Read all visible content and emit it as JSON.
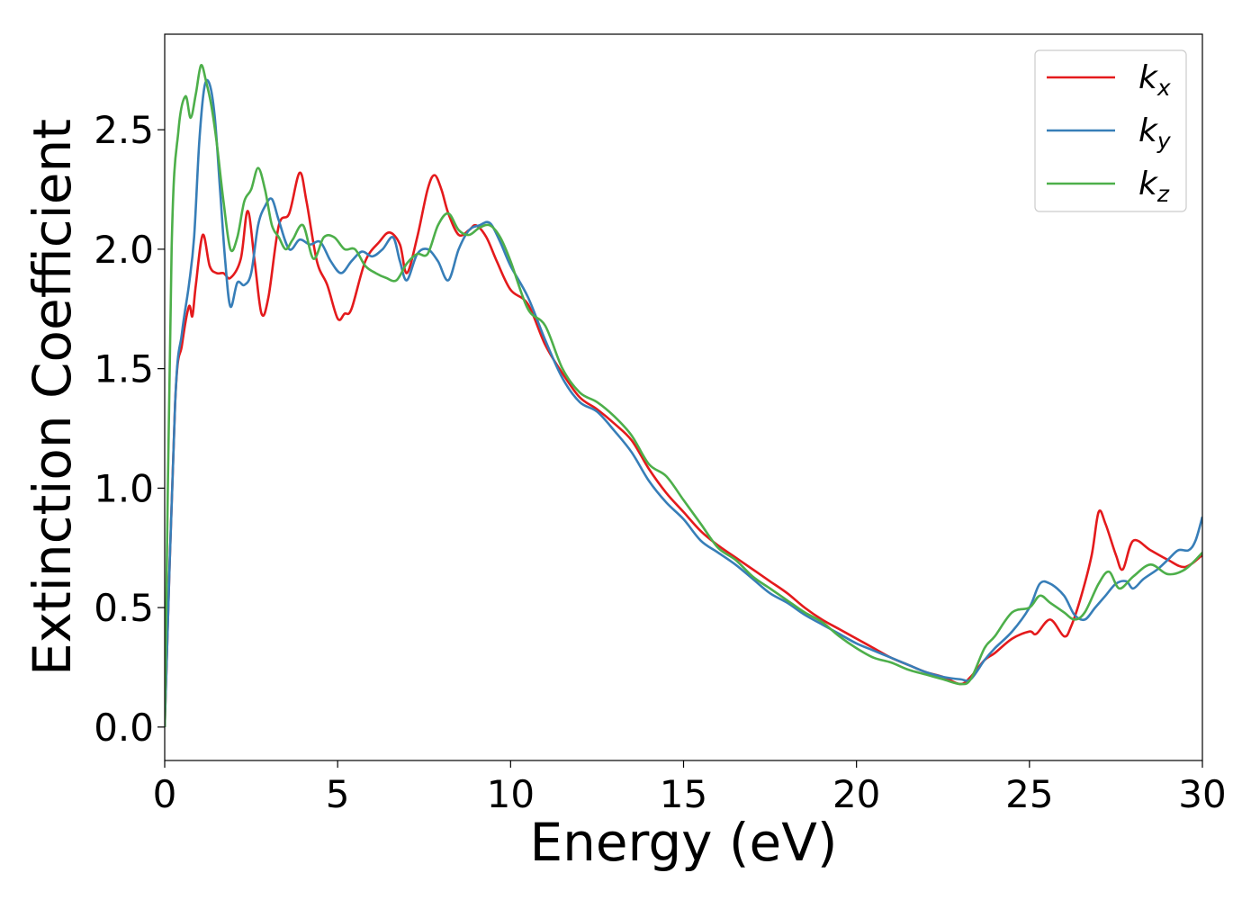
{
  "chart_data": {
    "type": "line",
    "xlabel": "Energy (eV)",
    "ylabel": "Extinction Coefficient",
    "xlim": [
      0,
      30
    ],
    "ylim": [
      -0.14,
      2.9
    ],
    "xticks": [
      0,
      5,
      10,
      15,
      20,
      25,
      30
    ],
    "xtick_labels": [
      "0",
      "5",
      "10",
      "15",
      "20",
      "25",
      "30"
    ],
    "yticks": [
      0.0,
      0.5,
      1.0,
      1.5,
      2.0,
      2.5
    ],
    "ytick_labels": [
      "0.0",
      "0.5",
      "1.0",
      "1.5",
      "2.0",
      "2.5"
    ],
    "grid": false,
    "legend_position": "top-right",
    "series": [
      {
        "name": "k_x",
        "legend_main": "k",
        "legend_sub": "x",
        "color": "#e41a1c",
        "x": [
          0,
          0.3,
          0.5,
          0.7,
          0.8,
          0.9,
          1.1,
          1.3,
          1.5,
          1.7,
          1.9,
          2.2,
          2.4,
          2.6,
          2.8,
          3.0,
          3.3,
          3.6,
          3.9,
          4.1,
          4.4,
          4.7,
          5.0,
          5.2,
          5.4,
          5.8,
          6.2,
          6.5,
          6.8,
          7.0,
          7.3,
          7.6,
          7.8,
          8.0,
          8.2,
          8.5,
          8.8,
          9.0,
          9.3,
          9.6,
          10.0,
          10.5,
          11.0,
          11.5,
          12.0,
          12.5,
          13.0,
          13.5,
          14.0,
          14.5,
          15.0,
          15.5,
          16.0,
          16.5,
          17.0,
          17.5,
          18.0,
          18.5,
          19.0,
          19.5,
          20.0,
          20.5,
          21.0,
          21.5,
          22.0,
          22.5,
          23.0,
          23.3,
          23.7,
          24.0,
          24.5,
          25.0,
          25.2,
          25.6,
          26.0,
          26.2,
          26.5,
          26.8,
          27.0,
          27.2,
          27.5,
          27.7,
          28.0,
          28.5,
          29.0,
          29.5,
          30.0
        ],
        "y": [
          0.0,
          1.35,
          1.6,
          1.76,
          1.72,
          1.85,
          2.06,
          1.93,
          1.9,
          1.9,
          1.88,
          1.96,
          2.16,
          1.95,
          1.73,
          1.8,
          2.1,
          2.15,
          2.32,
          2.2,
          1.95,
          1.85,
          1.71,
          1.73,
          1.75,
          1.95,
          2.03,
          2.07,
          2.02,
          1.9,
          2.05,
          2.25,
          2.31,
          2.25,
          2.15,
          2.06,
          2.08,
          2.1,
          2.05,
          1.95,
          1.83,
          1.77,
          1.6,
          1.48,
          1.38,
          1.33,
          1.27,
          1.2,
          1.08,
          0.98,
          0.9,
          0.82,
          0.76,
          0.71,
          0.66,
          0.61,
          0.56,
          0.5,
          0.45,
          0.41,
          0.37,
          0.33,
          0.29,
          0.26,
          0.23,
          0.21,
          0.18,
          0.21,
          0.28,
          0.31,
          0.37,
          0.4,
          0.39,
          0.45,
          0.38,
          0.42,
          0.55,
          0.72,
          0.9,
          0.85,
          0.72,
          0.66,
          0.78,
          0.74,
          0.7,
          0.67,
          0.72
        ]
      },
      {
        "name": "k_y",
        "legend_main": "k",
        "legend_sub": "y",
        "color": "#377eb8",
        "x": [
          0,
          0.3,
          0.5,
          0.7,
          0.85,
          1.0,
          1.15,
          1.3,
          1.45,
          1.6,
          1.75,
          1.9,
          2.1,
          2.3,
          2.5,
          2.7,
          2.9,
          3.1,
          3.3,
          3.6,
          3.9,
          4.2,
          4.5,
          4.8,
          5.1,
          5.4,
          5.7,
          6.0,
          6.3,
          6.6,
          6.8,
          7.0,
          7.3,
          7.6,
          7.9,
          8.2,
          8.5,
          8.8,
          9.1,
          9.4,
          9.7,
          10.0,
          10.5,
          11.0,
          11.5,
          12.0,
          12.5,
          13.0,
          13.5,
          14.0,
          14.5,
          15.0,
          15.5,
          16.0,
          16.5,
          17.0,
          17.5,
          18.0,
          18.5,
          19.0,
          19.5,
          20.0,
          20.5,
          21.0,
          21.5,
          22.0,
          22.5,
          23.0,
          23.3,
          23.7,
          24.0,
          24.5,
          25.0,
          25.3,
          25.6,
          26.0,
          26.3,
          26.6,
          26.9,
          27.2,
          27.5,
          27.8,
          28.0,
          28.3,
          28.7,
          29.0,
          29.3,
          29.6,
          29.8,
          30.0
        ],
        "y": [
          0.0,
          1.35,
          1.65,
          1.85,
          2.05,
          2.45,
          2.68,
          2.69,
          2.55,
          2.25,
          1.95,
          1.76,
          1.86,
          1.85,
          1.9,
          2.1,
          2.18,
          2.21,
          2.12,
          2.0,
          2.04,
          2.02,
          2.03,
          1.95,
          1.9,
          1.95,
          1.99,
          1.97,
          2.0,
          2.05,
          1.95,
          1.87,
          1.98,
          2.0,
          1.95,
          1.87,
          2.0,
          2.08,
          2.1,
          2.11,
          2.03,
          1.93,
          1.8,
          1.62,
          1.46,
          1.36,
          1.32,
          1.24,
          1.15,
          1.03,
          0.94,
          0.87,
          0.78,
          0.73,
          0.68,
          0.62,
          0.56,
          0.52,
          0.47,
          0.43,
          0.39,
          0.35,
          0.32,
          0.29,
          0.26,
          0.23,
          0.21,
          0.2,
          0.2,
          0.28,
          0.33,
          0.4,
          0.5,
          0.6,
          0.6,
          0.55,
          0.47,
          0.45,
          0.5,
          0.55,
          0.6,
          0.61,
          0.58,
          0.62,
          0.66,
          0.7,
          0.74,
          0.74,
          0.78,
          0.88
        ]
      },
      {
        "name": "k_z",
        "legend_main": "k",
        "legend_sub": "z",
        "color": "#4daf4a",
        "x": [
          0,
          0.2,
          0.4,
          0.6,
          0.75,
          0.9,
          1.05,
          1.2,
          1.35,
          1.5,
          1.7,
          1.9,
          2.1,
          2.3,
          2.5,
          2.7,
          2.9,
          3.1,
          3.3,
          3.5,
          3.7,
          4.0,
          4.3,
          4.6,
          4.9,
          5.2,
          5.5,
          5.8,
          6.1,
          6.4,
          6.7,
          7.0,
          7.3,
          7.6,
          7.9,
          8.2,
          8.5,
          8.8,
          9.1,
          9.4,
          9.7,
          10.0,
          10.5,
          11.0,
          11.5,
          12.0,
          12.5,
          13.0,
          13.5,
          14.0,
          14.5,
          15.0,
          15.5,
          16.0,
          16.5,
          17.0,
          17.5,
          18.0,
          18.5,
          19.0,
          19.5,
          20.0,
          20.5,
          21.0,
          21.5,
          22.0,
          22.5,
          23.0,
          23.3,
          23.7,
          24.0,
          24.5,
          25.0,
          25.3,
          25.6,
          26.0,
          26.3,
          26.6,
          27.0,
          27.3,
          27.6,
          28.0,
          28.5,
          29.0,
          29.5,
          30.0
        ],
        "y": [
          0.0,
          2.0,
          2.5,
          2.64,
          2.55,
          2.65,
          2.77,
          2.7,
          2.6,
          2.45,
          2.2,
          2.0,
          2.05,
          2.2,
          2.25,
          2.34,
          2.25,
          2.1,
          2.05,
          2.0,
          2.04,
          2.1,
          1.96,
          2.05,
          2.05,
          2.0,
          2.0,
          1.93,
          1.9,
          1.88,
          1.87,
          1.94,
          1.98,
          1.98,
          2.1,
          2.15,
          2.08,
          2.06,
          2.09,
          2.1,
          2.05,
          1.95,
          1.75,
          1.68,
          1.5,
          1.4,
          1.36,
          1.3,
          1.22,
          1.1,
          1.05,
          0.95,
          0.85,
          0.75,
          0.7,
          0.63,
          0.58,
          0.53,
          0.48,
          0.44,
          0.38,
          0.33,
          0.29,
          0.27,
          0.24,
          0.22,
          0.2,
          0.18,
          0.2,
          0.33,
          0.38,
          0.48,
          0.5,
          0.55,
          0.52,
          0.48,
          0.45,
          0.48,
          0.6,
          0.65,
          0.58,
          0.63,
          0.68,
          0.64,
          0.66,
          0.73
        ]
      }
    ]
  }
}
